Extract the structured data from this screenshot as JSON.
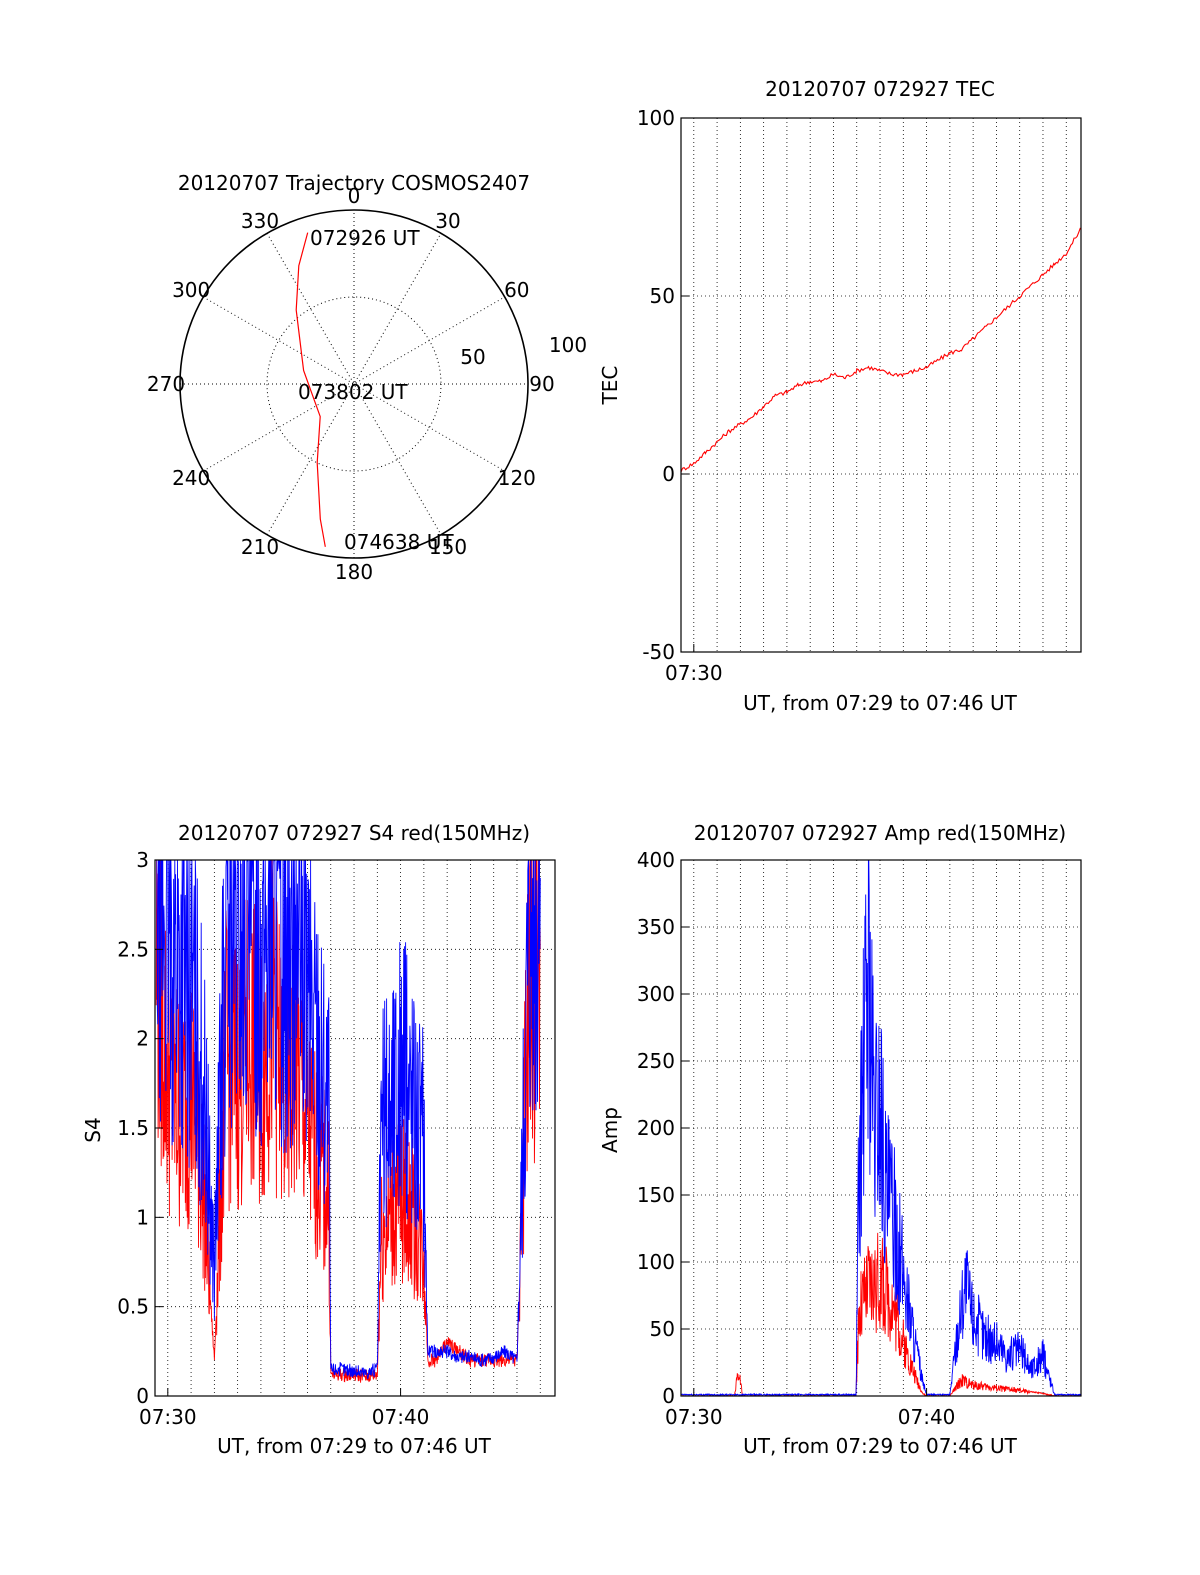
{
  "chart_data": [
    {
      "type": "polar",
      "title": "20120707 Trajectory COSMOS2407",
      "azimuth_labels": [
        "0",
        "30",
        "60",
        "90",
        "120",
        "150",
        "180",
        "210",
        "240",
        "270",
        "300",
        "330"
      ],
      "radius_labels": [
        "50",
        "100"
      ],
      "elevation_range": [
        0,
        100
      ],
      "grid": true,
      "trajectory_color": "#ff0000",
      "trajectory_labels": {
        "start": "072926 UT",
        "middle": "073802 UT",
        "end": "074638 UT"
      },
      "trajectory": [
        {
          "az": 343,
          "el": 9
        },
        {
          "az": 335,
          "el": 25
        },
        {
          "az": 322,
          "el": 46
        },
        {
          "az": 285,
          "el": 70
        },
        {
          "az": 226,
          "el": 73
        },
        {
          "az": 205,
          "el": 50
        },
        {
          "az": 194,
          "el": 20
        },
        {
          "az": 190,
          "el": 5
        }
      ]
    },
    {
      "type": "line",
      "title": "20120707 072927 TEC",
      "xlabel": "UT, from 07:29 to 07:46 UT",
      "ylabel": "TEC",
      "x_range": [
        "07:29:27",
        "07:46:38"
      ],
      "xticks": [
        "07:30"
      ],
      "ylim": [
        -50,
        100
      ],
      "yticks": [
        "-50",
        "0",
        "50",
        "100"
      ],
      "grid": true,
      "series": [
        {
          "color": "#ff0000",
          "x": [
            "07:29:27",
            "07:30:00",
            "07:30:30",
            "07:31:00",
            "07:31:30",
            "07:32:00",
            "07:32:30",
            "07:33:00",
            "07:33:30",
            "07:34:00",
            "07:34:30",
            "07:35:00",
            "07:35:30",
            "07:36:00",
            "07:36:30",
            "07:37:00",
            "07:37:30",
            "07:38:00",
            "07:38:30",
            "07:39:00",
            "07:39:30",
            "07:40:00",
            "07:40:30",
            "07:41:00",
            "07:41:30",
            "07:42:00",
            "07:42:30",
            "07:43:00",
            "07:43:30",
            "07:44:00",
            "07:44:30",
            "07:45:00",
            "07:45:30",
            "07:46:00",
            "07:46:38"
          ],
          "values": [
            1,
            3,
            6,
            9,
            12,
            14,
            16,
            19,
            22,
            23,
            25,
            26,
            26,
            28,
            27,
            29,
            30,
            29,
            28,
            28,
            29,
            30,
            32,
            34,
            35,
            38,
            41,
            44,
            47,
            50,
            53,
            56,
            59,
            62,
            69
          ]
        }
      ]
    },
    {
      "type": "line",
      "title": "20120707 072927 S4 red(150MHz)",
      "xlabel": "UT, from 07:29 to 07:46 UT",
      "ylabel": "S4",
      "x_range": [
        "07:29:27",
        "07:46:38"
      ],
      "xticks": [
        "07:30",
        "07:40"
      ],
      "ylim": [
        0,
        3
      ],
      "yticks": [
        "0",
        "0.5",
        "1",
        "1.5",
        "2",
        "2.5",
        "3"
      ],
      "grid": true,
      "series": [
        {
          "color": "#ff0000",
          "x": [
            "07:29:30",
            "07:30:00",
            "07:30:30",
            "07:31:00",
            "07:31:30",
            "07:32:00",
            "07:32:30",
            "07:33:00",
            "07:33:30",
            "07:34:00",
            "07:34:30",
            "07:35:00",
            "07:35:30",
            "07:36:00",
            "07:36:30",
            "07:36:55",
            "07:37:00",
            "07:37:30",
            "07:38:00",
            "07:38:30",
            "07:39:00",
            "07:39:10",
            "07:39:30",
            "07:40:00",
            "07:40:30",
            "07:41:00",
            "07:41:10",
            "07:41:30",
            "07:42:00",
            "07:42:30",
            "07:43:00",
            "07:43:30",
            "07:44:00",
            "07:44:30",
            "07:45:00",
            "07:45:30",
            "07:46:00"
          ],
          "values": [
            2.5,
            1.8,
            1.6,
            1.7,
            1.2,
            0.2,
            1.9,
            1.8,
            2.0,
            1.8,
            2.2,
            1.6,
            1.9,
            1.5,
            1.3,
            1.1,
            0.12,
            0.12,
            0.12,
            0.11,
            0.12,
            0.9,
            1.0,
            1.1,
            1.0,
            0.8,
            0.2,
            0.2,
            0.3,
            0.25,
            0.2,
            0.2,
            0.2,
            0.2,
            0.2,
            2.2,
            2.5
          ]
        },
        {
          "color": "#0000ff",
          "x": [
            "07:29:30",
            "07:30:00",
            "07:30:30",
            "07:31:00",
            "07:31:30",
            "07:32:00",
            "07:32:30",
            "07:33:00",
            "07:33:30",
            "07:34:00",
            "07:34:30",
            "07:35:00",
            "07:35:30",
            "07:36:00",
            "07:36:30",
            "07:36:55",
            "07:37:00",
            "07:37:30",
            "07:38:00",
            "07:38:30",
            "07:39:00",
            "07:39:10",
            "07:39:30",
            "07:40:00",
            "07:40:30",
            "07:41:00",
            "07:41:10",
            "07:41:30",
            "07:42:00",
            "07:42:30",
            "07:43:00",
            "07:43:30",
            "07:44:00",
            "07:44:30",
            "07:45:00",
            "07:45:30",
            "07:46:00"
          ],
          "values": [
            2.9,
            2.6,
            2.4,
            2.3,
            1.8,
            0.7,
            2.6,
            2.5,
            2.7,
            2.5,
            2.8,
            2.4,
            2.6,
            2.3,
            2.0,
            1.6,
            0.15,
            0.15,
            0.14,
            0.13,
            0.15,
            1.5,
            1.6,
            1.8,
            1.7,
            1.4,
            0.25,
            0.25,
            0.25,
            0.22,
            0.22,
            0.2,
            0.22,
            0.25,
            0.2,
            2.7,
            2.9
          ]
        }
      ]
    },
    {
      "type": "line",
      "title": "20120707 072927 Amp red(150MHz)",
      "xlabel": "UT, from 07:29 to 07:46 UT",
      "ylabel": "Amp",
      "x_range": [
        "07:29:27",
        "07:46:38"
      ],
      "xticks": [
        "07:30",
        "07:40"
      ],
      "ylim": [
        0,
        400
      ],
      "yticks": [
        "0",
        "50",
        "100",
        "150",
        "200",
        "250",
        "300",
        "350",
        "400"
      ],
      "grid": true,
      "series": [
        {
          "color": "#ff0000",
          "x": [
            "07:29:27",
            "07:31:45",
            "07:31:50",
            "07:32:00",
            "07:32:05",
            "07:36:58",
            "07:37:05",
            "07:37:30",
            "07:38:00",
            "07:38:30",
            "07:39:00",
            "07:39:30",
            "07:39:50",
            "07:40:00",
            "07:41:00",
            "07:41:30",
            "07:42:00",
            "07:42:30",
            "07:43:00",
            "07:43:30",
            "07:44:00",
            "07:44:30",
            "07:45:00",
            "07:45:30",
            "07:46:38"
          ],
          "values": [
            0,
            0,
            12,
            14,
            0,
            0,
            60,
            80,
            85,
            70,
            40,
            15,
            2,
            0,
            0,
            12,
            8,
            7,
            6,
            5,
            4,
            3,
            2,
            0,
            0
          ]
        },
        {
          "color": "#0000ff",
          "x": [
            "07:29:27",
            "07:36:58",
            "07:37:05",
            "07:37:20",
            "07:37:30",
            "07:37:45",
            "07:38:00",
            "07:38:15",
            "07:38:30",
            "07:39:00",
            "07:39:30",
            "07:39:50",
            "07:40:00",
            "07:41:00",
            "07:41:20",
            "07:41:40",
            "07:42:00",
            "07:42:30",
            "07:43:00",
            "07:43:30",
            "07:44:00",
            "07:44:30",
            "07:45:00",
            "07:45:30",
            "07:46:38"
          ],
          "values": [
            1,
            1,
            160,
            250,
            320,
            200,
            220,
            150,
            140,
            90,
            40,
            10,
            1,
            1,
            50,
            85,
            60,
            45,
            40,
            30,
            35,
            20,
            30,
            1,
            1
          ]
        }
      ]
    }
  ]
}
